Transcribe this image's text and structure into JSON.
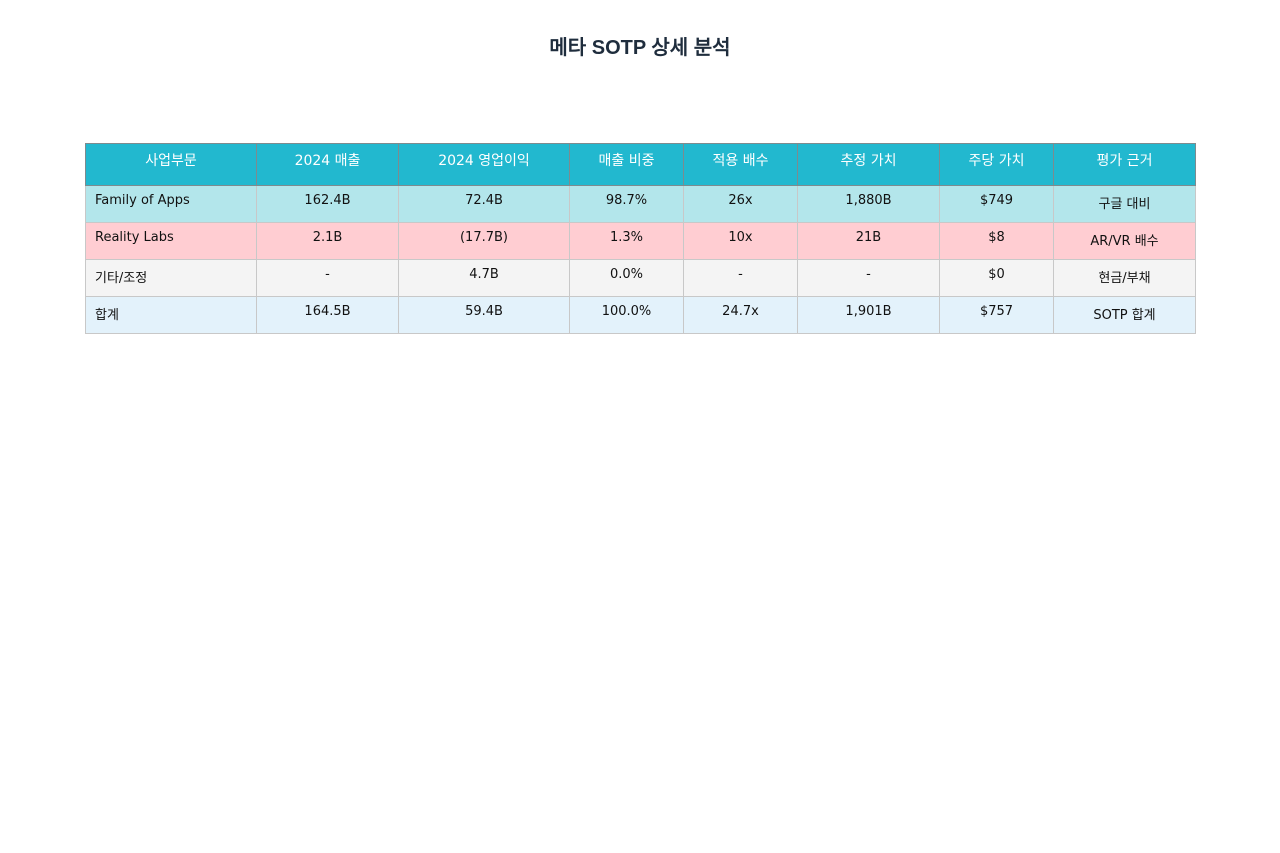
{
  "title": "메타 SOTP 상세 분석",
  "colors": {
    "header_bg": "#22b8cf",
    "header_text": "#ffffff",
    "row_family": "#b3e6eb",
    "row_reality": "#ffcdd2",
    "row_other": "#f4f4f4",
    "row_total": "#e3f2fb",
    "title_text": "#1f2d3d"
  },
  "chart_data": {
    "type": "table",
    "title": "메타 SOTP 상세 분석",
    "columns": [
      "사업부문",
      "2024 매출",
      "2024 영업이익",
      "매출 비중",
      "적용 배수",
      "추정 가치",
      "주당 가치",
      "평가 근거"
    ],
    "rows": [
      {
        "segment": "Family of Apps",
        "revenue": "162.4B",
        "op_income": "72.4B",
        "revenue_share": "98.7%",
        "multiple": "26x",
        "est_value": "1,880B",
        "per_share": "$749",
        "basis": "구글 대비",
        "color": "#b3e6eb"
      },
      {
        "segment": "Reality Labs",
        "revenue": "2.1B",
        "op_income": "(17.7B)",
        "revenue_share": "1.3%",
        "multiple": "10x",
        "est_value": "21B",
        "per_share": "$8",
        "basis": "AR/VR 배수",
        "color": "#ffcdd2"
      },
      {
        "segment": "기타/조정",
        "revenue": "-",
        "op_income": "4.7B",
        "revenue_share": "0.0%",
        "multiple": "-",
        "est_value": "-",
        "per_share": "$0",
        "basis": "현금/부채",
        "color": "#f4f4f4"
      },
      {
        "segment": "합계",
        "revenue": "164.5B",
        "op_income": "59.4B",
        "revenue_share": "100.0%",
        "multiple": "24.7x",
        "est_value": "1,901B",
        "per_share": "$757",
        "basis": "SOTP 합계",
        "color": "#e3f2fb"
      }
    ]
  }
}
